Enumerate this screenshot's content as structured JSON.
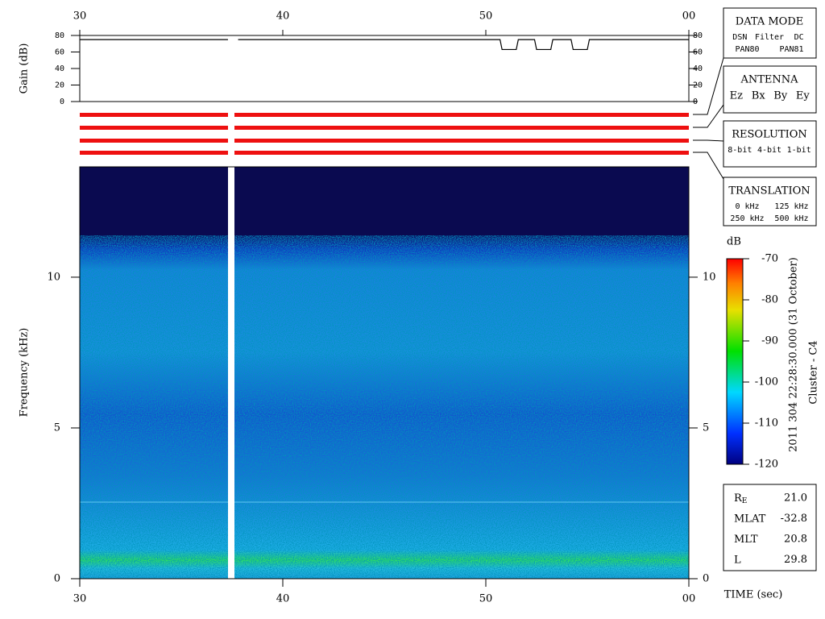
{
  "chart_data": [
    {
      "type": "line",
      "ylabel": "Gain (dB)",
      "xlim": [
        30,
        60
      ],
      "xticks": [
        30,
        40,
        50,
        {
          "value": 60,
          "label": "00"
        }
      ],
      "ylim": [
        0,
        80
      ],
      "yticks": [
        0,
        20,
        40,
        60,
        80
      ],
      "x": [
        30,
        37.3,
        37.5,
        37.8,
        50.7,
        50.8,
        51.5,
        51.6,
        52.4,
        52.5,
        53.2,
        53.3,
        54.2,
        54.3,
        55,
        55.1,
        60
      ],
      "values": [
        75,
        75,
        null,
        75,
        75,
        63,
        63,
        75,
        75,
        63,
        63,
        75,
        75,
        63,
        63,
        75,
        75
      ],
      "color": "#000000"
    },
    {
      "type": "spectrogram",
      "xlabel": "TIME (sec)",
      "ylabel": "Frequency (kHz)",
      "xlim": [
        30,
        60
      ],
      "xticks": [
        30,
        40,
        50,
        {
          "value": 60,
          "label": "00"
        }
      ],
      "ylim": [
        0,
        13.66
      ],
      "yticks": [
        0,
        5,
        10
      ],
      "colorbar": {
        "label": "dB",
        "lim": [
          -120,
          -70
        ],
        "ticks": [
          -70,
          -80,
          -90,
          -100,
          -110,
          -120
        ]
      }
    }
  ],
  "side_text": [
    "2011 304 22:28:30.000 (31 October)",
    "Cluster - C4"
  ],
  "legends": [
    {
      "title": "DATA MODE",
      "rows": [
        [
          {
            "text": "DSN",
            "color": "#e00000"
          },
          {
            "text": "Filter",
            "color": "#00c000"
          },
          {
            "text": "DC",
            "color": "#0000e0"
          }
        ],
        [
          {
            "text": "PAN80",
            "color": "#000000"
          },
          {
            "text": "PAN81",
            "color": "#00c8c8"
          }
        ]
      ]
    },
    {
      "title": "ANTENNA",
      "rows": [
        [
          {
            "text": "Ez",
            "color": "#e00000"
          },
          {
            "text": "Bx",
            "color": "#00c000"
          },
          {
            "text": "By",
            "color": "#0000e0"
          },
          {
            "text": "Ey",
            "color": "#000000"
          }
        ]
      ]
    },
    {
      "title": "RESOLUTION",
      "rows": [
        [
          {
            "text": "8-bit",
            "color": "#e00000"
          },
          {
            "text": "4-bit",
            "color": "#00c000"
          },
          {
            "text": "1-bit",
            "color": "#0000e0"
          }
        ]
      ]
    },
    {
      "title": "TRANSLATION",
      "rows": [
        [
          {
            "text": "0 kHz",
            "color": "#e00000"
          },
          {
            "text": "125 kHz",
            "color": "#00c000"
          }
        ],
        [
          {
            "text": "250 kHz",
            "color": "#0000e0"
          },
          {
            "text": "500 kHz",
            "color": "#000000"
          }
        ]
      ]
    }
  ],
  "position": [
    {
      "label": "R",
      "sub": "E",
      "value": "21.0"
    },
    {
      "label": "MLAT",
      "value": "-32.8"
    },
    {
      "label": "MLT",
      "value": "20.8"
    },
    {
      "label": "L",
      "value": "29.8"
    }
  ]
}
